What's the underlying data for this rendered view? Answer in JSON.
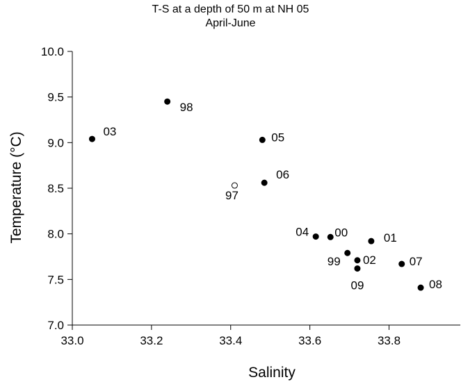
{
  "chart_data": {
    "type": "scatter",
    "title": "T-S at  a depth of 50 m at NH 05",
    "subtitle": "April-June",
    "xlabel": "Salinity",
    "ylabel": "Temperature (°C)",
    "xlim": [
      33.0,
      33.98
    ],
    "ylim": [
      7.0,
      10.0
    ],
    "xticks": [
      "33.0",
      "33.2",
      "33.4",
      "33.6",
      "33.8"
    ],
    "xtick_values": [
      33.0,
      33.2,
      33.4,
      33.6,
      33.8
    ],
    "yticks": [
      "7.0",
      "7.5",
      "8.0",
      "8.5",
      "9.0",
      "9.5",
      "10.0"
    ],
    "ytick_values": [
      7.0,
      7.5,
      8.0,
      8.5,
      9.0,
      9.5,
      10.0
    ],
    "grid": false,
    "points": [
      {
        "label": "98",
        "x": 33.24,
        "y": 9.45,
        "filled": true
      },
      {
        "label": "03",
        "x": 33.05,
        "y": 9.04,
        "filled": true
      },
      {
        "label": "05",
        "x": 33.48,
        "y": 9.03,
        "filled": true
      },
      {
        "label": "06",
        "x": 33.485,
        "y": 8.56,
        "filled": true
      },
      {
        "label": "97",
        "x": 33.41,
        "y": 8.53,
        "filled": false
      },
      {
        "label": "04",
        "x": 33.615,
        "y": 7.97,
        "filled": true
      },
      {
        "label": "00",
        "x": 33.652,
        "y": 7.965,
        "filled": true
      },
      {
        "label": "01",
        "x": 33.755,
        "y": 7.92,
        "filled": true
      },
      {
        "label": "99",
        "x": 33.695,
        "y": 7.79,
        "filled": true
      },
      {
        "label": "02",
        "x": 33.72,
        "y": 7.71,
        "filled": true
      },
      {
        "label": "07",
        "x": 33.832,
        "y": 7.67,
        "filled": true
      },
      {
        "label": "09",
        "x": 33.72,
        "y": 7.62,
        "filled": true
      },
      {
        "label": "08",
        "x": 33.88,
        "y": 7.41,
        "filled": true
      }
    ]
  }
}
